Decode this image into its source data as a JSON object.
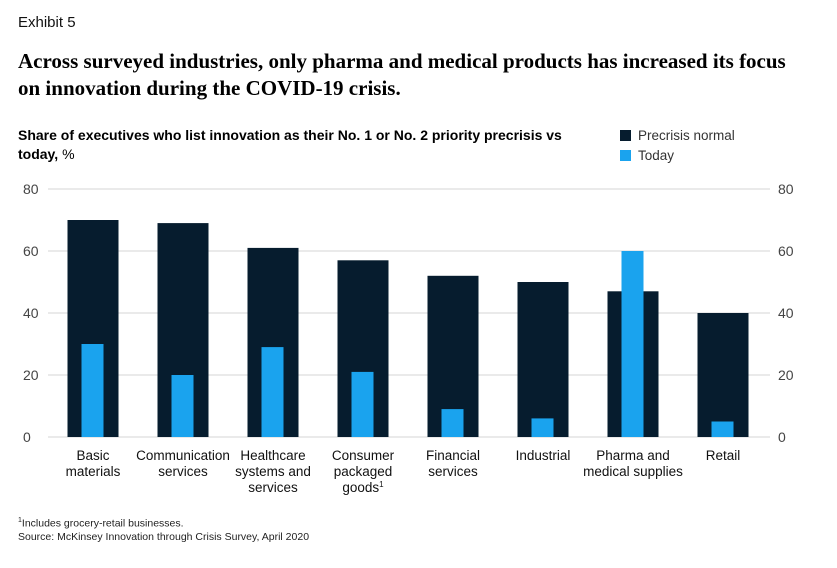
{
  "exhibit_label": "Exhibit 5",
  "title": "Across surveyed industries, only pharma and medical products has increased its focus on innovation during the COVID-19 crisis.",
  "subtitle_bold": "Share of executives who list innovation as their No. 1 or No. 2 priority precrisis vs today,",
  "subtitle_unit": " %",
  "footnote_marker": "1",
  "footnote_text": "Includes grocery-retail businesses.",
  "source": "Source: McKinsey Innovation through Crisis Survey, April 2020",
  "colors": {
    "precrisis": "#061c2e",
    "today": "#1aa3ee",
    "grid": "#d4d4d4",
    "axis_text": "#444444"
  },
  "chart_data": {
    "type": "bar",
    "title": "Share of executives who list innovation as their No. 1 or No. 2 priority precrisis vs today, %",
    "xlabel": "",
    "ylabel": "%",
    "ylim": [
      0,
      80
    ],
    "yticks": [
      0,
      20,
      40,
      60,
      80
    ],
    "grid": true,
    "legend_position": "top-right",
    "categories": [
      [
        "Basic",
        "materials"
      ],
      [
        "Communication",
        "services"
      ],
      [
        "Healthcare",
        "systems and",
        "services"
      ],
      [
        "Consumer",
        "packaged",
        "goods"
      ],
      [
        "Financial",
        "services"
      ],
      [
        "Industrial"
      ],
      [
        "Pharma and",
        "medical supplies"
      ],
      [
        "Retail"
      ]
    ],
    "category_superscripts": [
      "",
      "",
      "",
      "1",
      "",
      "",
      "",
      ""
    ],
    "series": [
      {
        "name": "Precrisis normal",
        "values": [
          70,
          69,
          61,
          57,
          52,
          50,
          47,
          40
        ]
      },
      {
        "name": "Today",
        "values": [
          30,
          20,
          29,
          21,
          9,
          6,
          60,
          5
        ]
      }
    ]
  }
}
